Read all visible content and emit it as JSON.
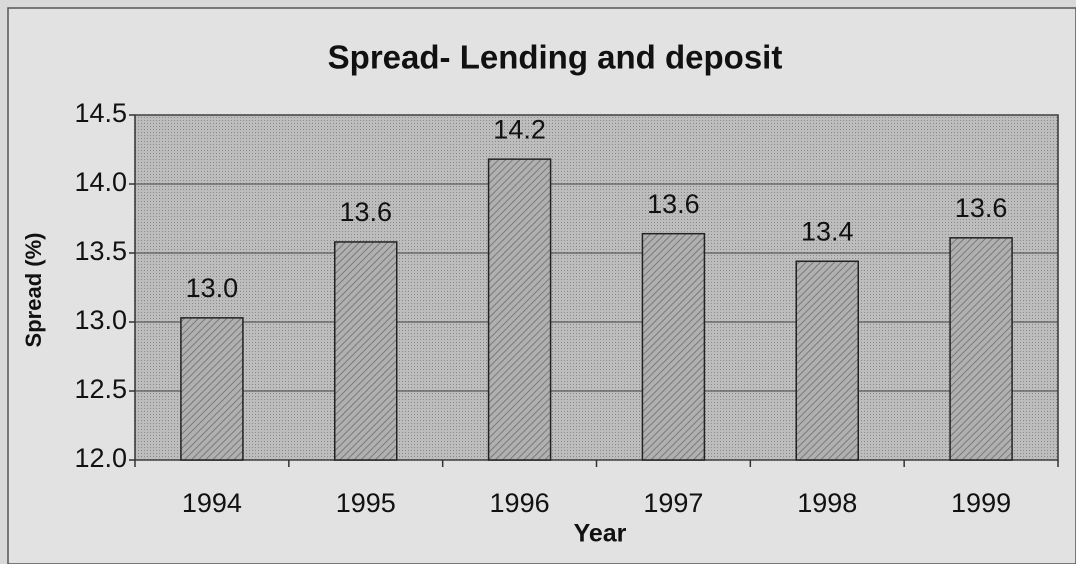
{
  "chart_data": {
    "type": "bar",
    "title": "Spread- Lending and deposit",
    "x_label": "Year",
    "y_label": "Spread (%)",
    "categories": [
      "1994",
      "1995",
      "1996",
      "1997",
      "1998",
      "1999"
    ],
    "values": [
      13.03,
      13.58,
      14.18,
      13.64,
      13.44,
      13.61
    ],
    "value_labels": [
      "13.0",
      "13.6",
      "14.2",
      "13.6",
      "13.4",
      "13.6"
    ],
    "color": "#a8a8a8",
    "ylim": [
      12,
      14.5
    ],
    "yticks": [
      {
        "value": 12,
        "label": "12.0"
      },
      12.5,
      {
        "value": 13,
        "label": "13.0"
      },
      13.5,
      {
        "value": 14,
        "label": "14.0"
      },
      14.5
    ],
    "grid": true
  }
}
